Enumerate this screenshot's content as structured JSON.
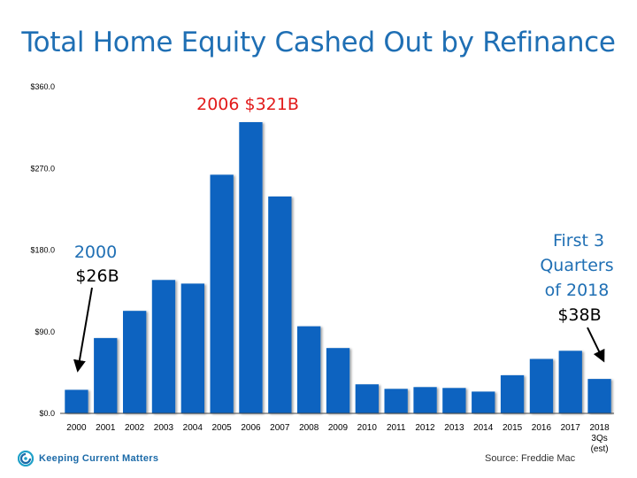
{
  "title": "Total Home Equity Cashed Out by Refinance",
  "chart_data": {
    "type": "bar",
    "categories": [
      "2000",
      "2001",
      "2002",
      "2003",
      "2004",
      "2005",
      "2006",
      "2007",
      "2008",
      "2009",
      "2010",
      "2011",
      "2012",
      "2013",
      "2014",
      "2015",
      "2016",
      "2017",
      "2018\n3Qs\n(est)"
    ],
    "values": [
      26,
      83,
      113,
      147,
      143,
      263,
      321,
      239,
      96,
      72,
      32,
      27,
      29,
      28,
      24,
      42,
      60,
      69,
      38
    ],
    "ylim": [
      0,
      360
    ],
    "yticks": [
      "$0.0",
      "$90.0",
      "$180.0",
      "$270.0",
      "$360.0"
    ],
    "ytick_values": [
      0,
      90,
      180,
      270,
      360
    ],
    "grid": false,
    "bar_color": "#0a64c0",
    "annotations": {
      "start_year": "2000",
      "start_value": "$26B",
      "peak": "2006 $321B",
      "end_line1": "First 3",
      "end_line2": "Quarters",
      "end_line3": "of 2018",
      "end_value": "$38B"
    }
  },
  "colors": {
    "title": "#1f6fb4",
    "annotation_blue": "#1f6fb4",
    "annotation_red": "#e21b1b"
  },
  "footer": {
    "logo_icon": "keeping-current-matters-logo",
    "logo_text": "Keeping Current Matters",
    "source": "Source: Freddie Mac"
  }
}
